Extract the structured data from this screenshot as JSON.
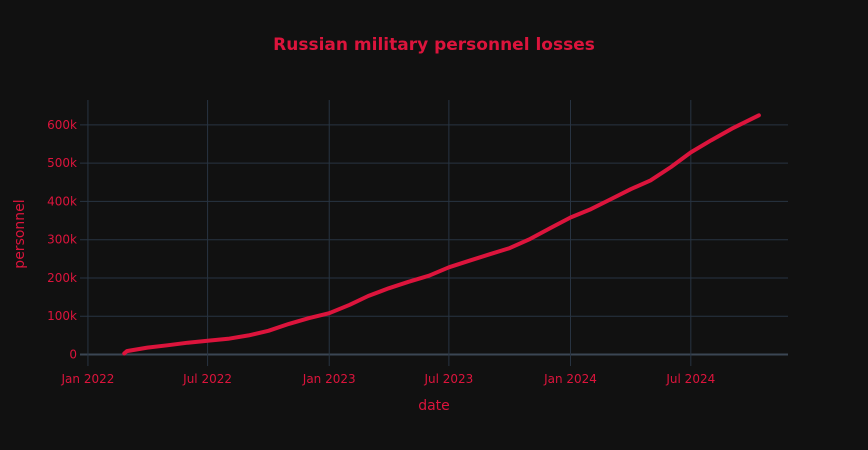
{
  "colors": {
    "background": "#111111",
    "plot_bg": "#111111",
    "grid": "#283442",
    "zeroline": "#3b4654",
    "accent": "#dc143c"
  },
  "chart_data": {
    "type": "line",
    "title": "Russian military personnel losses",
    "xlabel": "date",
    "ylabel": "personnel",
    "x_is_date": true,
    "xlim": [
      "2021-12-20",
      "2024-11-25"
    ],
    "ylim": [
      -30000,
      665000
    ],
    "x_ticks": [
      {
        "value": "2022-01-01",
        "label": "Jan 2022"
      },
      {
        "value": "2022-07-01",
        "label": "Jul 2022"
      },
      {
        "value": "2023-01-01",
        "label": "Jan 2023"
      },
      {
        "value": "2023-07-01",
        "label": "Jul 2023"
      },
      {
        "value": "2024-01-01",
        "label": "Jan 2024"
      },
      {
        "value": "2024-07-01",
        "label": "Jul 2024"
      }
    ],
    "y_ticks": [
      {
        "value": 0,
        "label": "0"
      },
      {
        "value": 100000,
        "label": "100k"
      },
      {
        "value": 200000,
        "label": "200k"
      },
      {
        "value": 300000,
        "label": "300k"
      },
      {
        "value": 400000,
        "label": "400k"
      },
      {
        "value": 500000,
        "label": "500k"
      },
      {
        "value": 600000,
        "label": "600k"
      }
    ],
    "grid": true,
    "series": [
      {
        "color": "#dc143c",
        "x": [
          "2022-02-25",
          "2022-03-01",
          "2022-04-01",
          "2022-05-01",
          "2022-06-01",
          "2022-07-01",
          "2022-08-01",
          "2022-09-01",
          "2022-10-01",
          "2022-11-01",
          "2022-12-01",
          "2023-01-01",
          "2023-02-01",
          "2023-03-01",
          "2023-04-01",
          "2023-05-01",
          "2023-06-01",
          "2023-07-01",
          "2023-08-01",
          "2023-09-01",
          "2023-10-01",
          "2023-11-01",
          "2023-12-01",
          "2024-01-01",
          "2024-02-01",
          "2024-03-01",
          "2024-04-01",
          "2024-05-01",
          "2024-06-01",
          "2024-07-01",
          "2024-08-01",
          "2024-09-01",
          "2024-10-12"
        ],
        "y": [
          2800,
          9000,
          18000,
          24000,
          31000,
          36000,
          41000,
          50000,
          62000,
          80000,
          95000,
          108000,
          130000,
          153000,
          173000,
          190000,
          206000,
          228000,
          245000,
          262000,
          278000,
          302000,
          330000,
          358000,
          380000,
          405000,
          432000,
          455000,
          490000,
          528000,
          560000,
          590000,
          625000
        ]
      }
    ]
  }
}
